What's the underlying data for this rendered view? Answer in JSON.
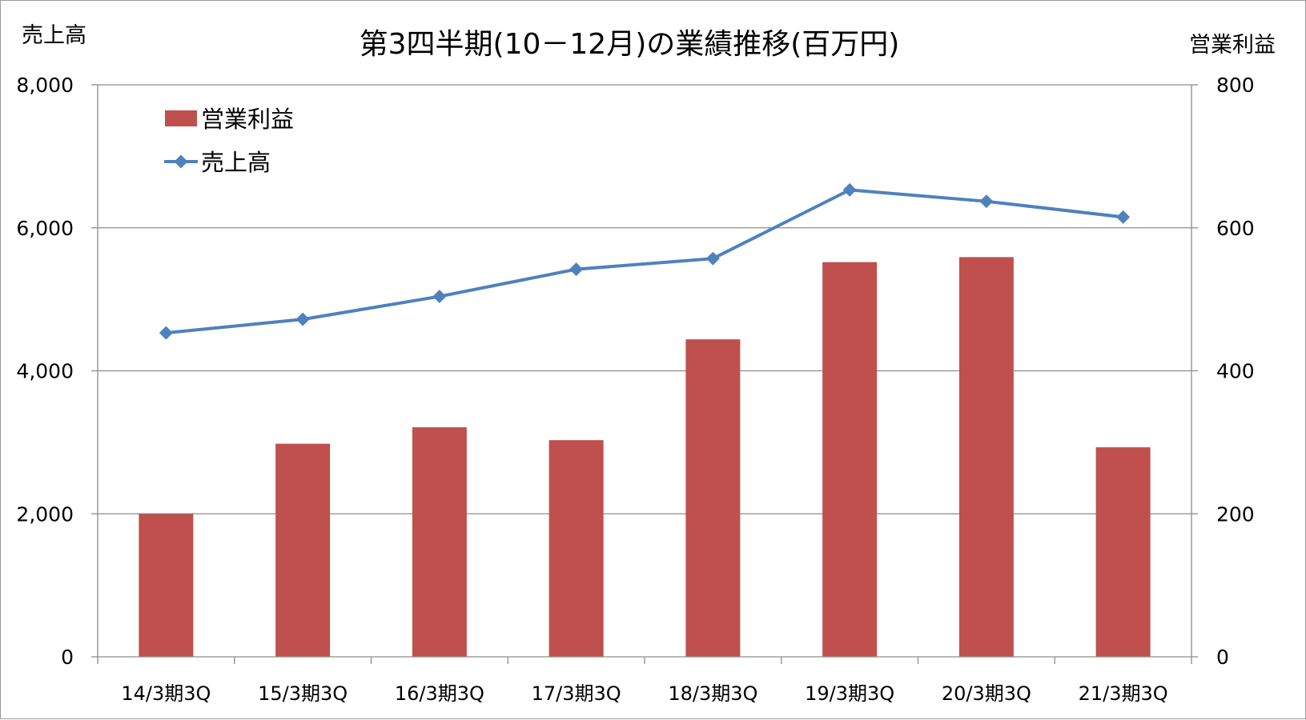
{
  "chart_data": {
    "type": "bar",
    "title": "第3四半期(10－12月)の業績推移(百万円)",
    "y_left_label": "売上高",
    "y_right_label": "営業利益",
    "categories": [
      "14/3期3Q",
      "15/3期3Q",
      "16/3期3Q",
      "17/3期3Q",
      "18/3期3Q",
      "19/3期3Q",
      "20/3期3Q",
      "21/3期3Q"
    ],
    "series": [
      {
        "name": "営業利益",
        "type": "bar",
        "axis": "right",
        "color": "#c0504d",
        "values": [
          200,
          298,
          321,
          303,
          444,
          552,
          559,
          293
        ]
      },
      {
        "name": "売上高",
        "type": "line",
        "axis": "left",
        "color": "#4f81bd",
        "values": [
          4530,
          4720,
          5040,
          5420,
          5570,
          6530,
          6370,
          6150
        ]
      }
    ],
    "y_left": {
      "min": 0,
      "max": 8000,
      "ticks": [
        "0",
        "2,000",
        "4,000",
        "6,000",
        "8,000"
      ]
    },
    "y_right": {
      "min": 0,
      "max": 800,
      "ticks": [
        "0",
        "200",
        "400",
        "600",
        "800"
      ]
    },
    "grid": true,
    "legend_position": "top-left"
  }
}
